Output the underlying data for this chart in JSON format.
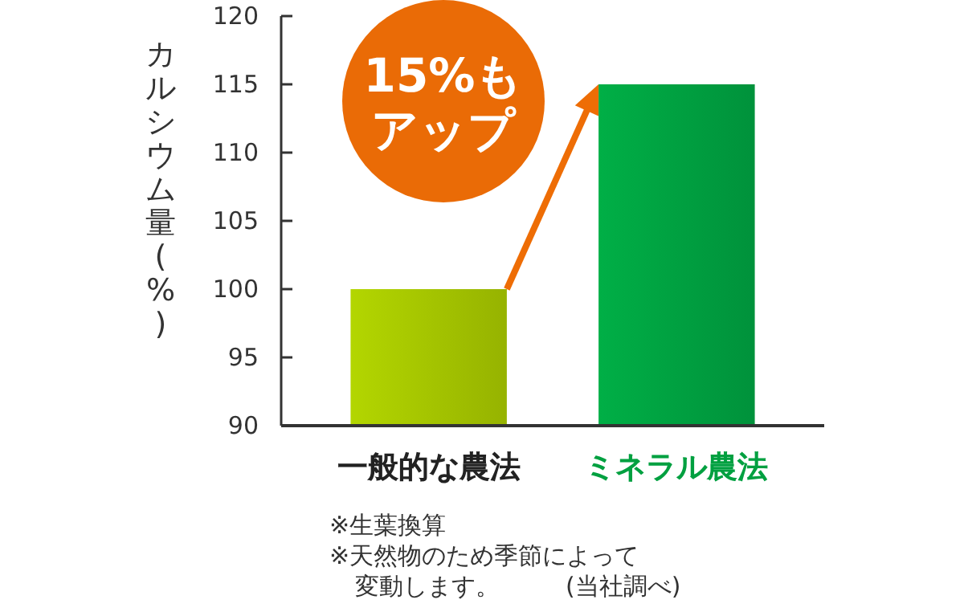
{
  "chart_data": {
    "type": "bar",
    "ylabel": "カルシウム量(%)",
    "categories": [
      "一般的な農法",
      "ミネラル農法"
    ],
    "values": [
      100,
      115
    ],
    "colors": [
      "#a4c400",
      "#00a040"
    ],
    "ylim": [
      90,
      120
    ],
    "yticks": [
      90,
      95,
      100,
      105,
      110,
      115,
      120
    ],
    "grid": false,
    "annotations": [
      "15%もアップ",
      "※生葉換算",
      "※天然物のため季節によって変動します。",
      "(当社調べ)"
    ]
  }
}
